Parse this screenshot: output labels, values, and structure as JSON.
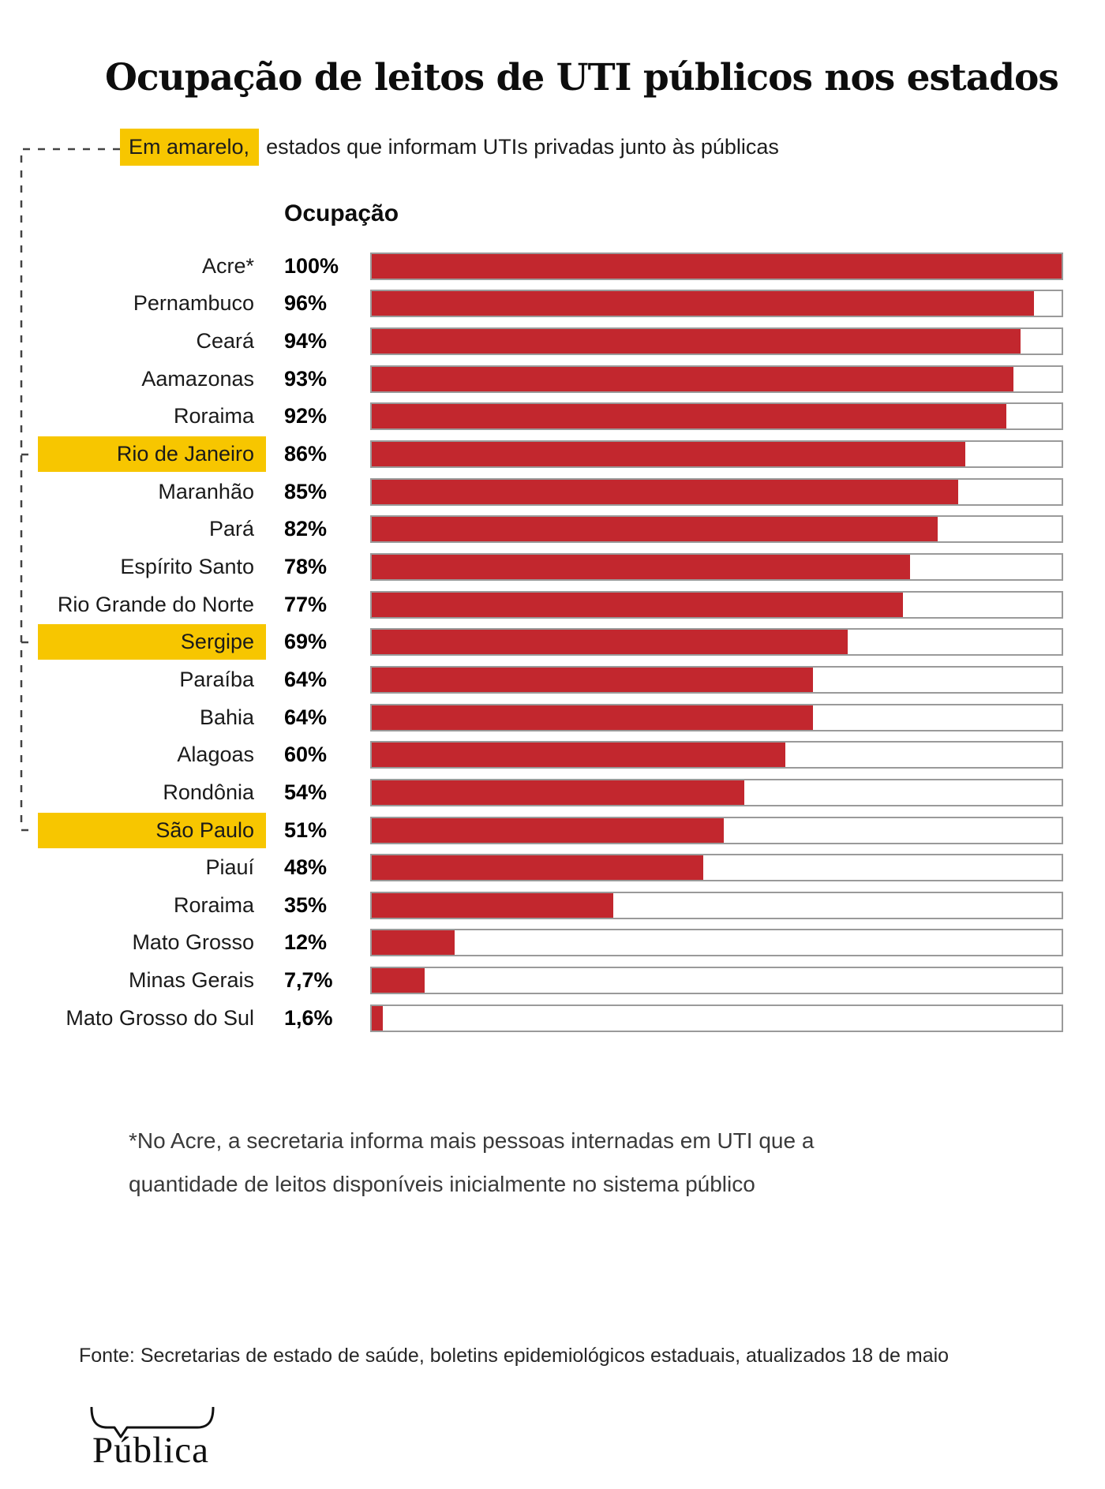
{
  "title": "Ocupação de leitos de UTI públicos nos estados",
  "subtitle": {
    "highlight": "Em amarelo,",
    "rest": "estados que informam UTIs privadas junto às públicas"
  },
  "column_header": "Ocupação",
  "footnote": {
    "line1": "*No Acre, a secretaria informa mais pessoas internadas em UTI que a",
    "line2": "quantidade de leitos disponíveis inicialmente no sistema público"
  },
  "source": "Fonte: Secretarias de estado de saúde, boletins epidemiológicos estaduais, atualizados 18 de maio",
  "logo_text": "Pública",
  "colors": {
    "bar_red": "#c2272e",
    "highlight_yellow": "#f7c600",
    "track_border": "#9a9a9a",
    "dashed_line": "#444444"
  },
  "chart_data": {
    "type": "bar",
    "orientation": "horizontal",
    "value_header": "Ocupação",
    "xlim": [
      0,
      100
    ],
    "grid": false,
    "legend": "none",
    "highlight_meaning": "Em amarelo, estados que informam UTIs privadas junto às públicas",
    "categories": [
      "Acre*",
      "Pernambuco",
      "Ceará",
      "Aamazonas",
      "Roraima",
      "Rio de Janeiro",
      "Maranhão",
      "Pará",
      "Espírito Santo",
      "Rio Grande do Norte",
      "Sergipe",
      "Paraíba",
      "Bahia",
      "Alagoas",
      "Rondônia",
      "São Paulo",
      "Piauí",
      "Roraima",
      "Mato Grosso",
      "Minas Gerais",
      "Mato Grosso do Sul"
    ],
    "values": [
      100,
      96,
      94,
      93,
      92,
      86,
      85,
      82,
      78,
      77,
      69,
      64,
      64,
      60,
      54,
      51,
      48,
      35,
      12,
      7.7,
      1.6
    ],
    "rows": [
      {
        "state": "Acre*",
        "value": 100,
        "label": "100%",
        "highlighted": false
      },
      {
        "state": "Pernambuco",
        "value": 96,
        "label": "96%",
        "highlighted": false
      },
      {
        "state": "Ceará",
        "value": 94,
        "label": "94%",
        "highlighted": false
      },
      {
        "state": "Aamazonas",
        "value": 93,
        "label": "93%",
        "highlighted": false
      },
      {
        "state": "Roraima",
        "value": 92,
        "label": "92%",
        "highlighted": false
      },
      {
        "state": "Rio de Janeiro",
        "value": 86,
        "label": "86%",
        "highlighted": true
      },
      {
        "state": "Maranhão",
        "value": 85,
        "label": "85%",
        "highlighted": false
      },
      {
        "state": "Pará",
        "value": 82,
        "label": "82%",
        "highlighted": false
      },
      {
        "state": "Espírito Santo",
        "value": 78,
        "label": "78%",
        "highlighted": false
      },
      {
        "state": "Rio Grande do Norte",
        "value": 77,
        "label": "77%",
        "highlighted": false
      },
      {
        "state": "Sergipe",
        "value": 69,
        "label": "69%",
        "highlighted": true
      },
      {
        "state": "Paraíba",
        "value": 64,
        "label": "64%",
        "highlighted": false
      },
      {
        "state": "Bahia",
        "value": 64,
        "label": "64%",
        "highlighted": false
      },
      {
        "state": "Alagoas",
        "value": 60,
        "label": "60%",
        "highlighted": false
      },
      {
        "state": "Rondônia",
        "value": 54,
        "label": "54%",
        "highlighted": false
      },
      {
        "state": "São Paulo",
        "value": 51,
        "label": "51%",
        "highlighted": true
      },
      {
        "state": "Piauí",
        "value": 48,
        "label": "48%",
        "highlighted": false
      },
      {
        "state": "Roraima",
        "value": 35,
        "label": "35%",
        "highlighted": false
      },
      {
        "state": "Mato Grosso",
        "value": 12,
        "label": "12%",
        "highlighted": false
      },
      {
        "state": "Minas Gerais",
        "value": 7.7,
        "label": "7,7%",
        "highlighted": false
      },
      {
        "state": "Mato Grosso do Sul",
        "value": 1.6,
        "label": "1,6%",
        "highlighted": false
      }
    ]
  }
}
